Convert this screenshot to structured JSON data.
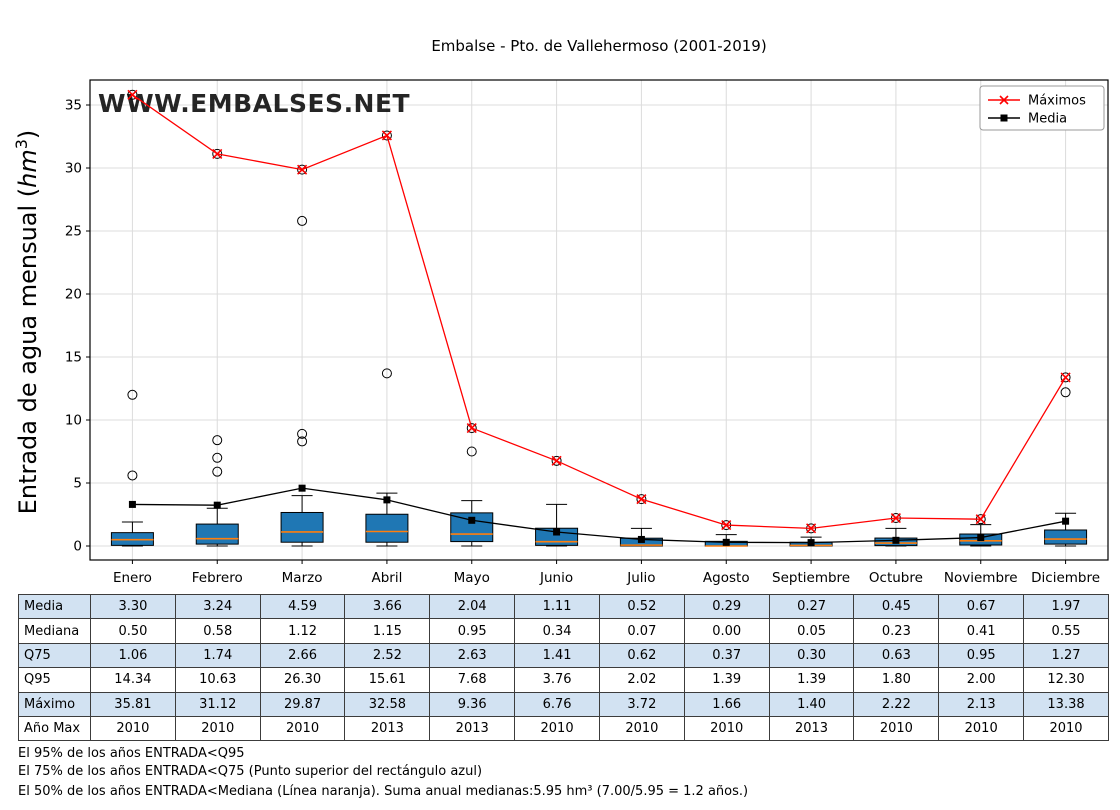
{
  "chart_data": {
    "type": "boxplot+line",
    "title": "Embalse - Pto. de Vallehermoso (2001-2019)",
    "watermark": "WWW.EMBALSES.NET",
    "ylabel": "Entrada de agua mensual (hm³)",
    "ylim": [
      -1.1,
      37.0
    ],
    "yticks": [
      0,
      5,
      10,
      15,
      20,
      25,
      30,
      35
    ],
    "grid": true,
    "legend_position": "upper right",
    "categories": [
      "Enero",
      "Febrero",
      "Marzo",
      "Abril",
      "Mayo",
      "Junio",
      "Julio",
      "Agosto",
      "Septiembre",
      "Octubre",
      "Noviembre",
      "Diciembre"
    ],
    "series": [
      {
        "name": "Máximos",
        "type": "line",
        "color": "#ff0000",
        "marker": "x",
        "values": [
          35.81,
          31.12,
          29.87,
          32.58,
          9.36,
          6.76,
          3.72,
          1.66,
          1.4,
          2.22,
          2.13,
          13.38
        ]
      },
      {
        "name": "Media",
        "type": "line",
        "color": "#000000",
        "marker": "square",
        "values": [
          3.3,
          3.24,
          4.59,
          3.66,
          2.04,
          1.11,
          0.52,
          0.29,
          0.27,
          0.45,
          0.67,
          1.97
        ]
      }
    ],
    "boxplot": {
      "box_fill": "#1f77b4",
      "median_color": "#ff7f0e",
      "median": [
        0.5,
        0.58,
        1.12,
        1.15,
        0.95,
        0.34,
        0.07,
        0.0,
        0.05,
        0.23,
        0.41,
        0.55
      ],
      "q75": [
        1.06,
        1.74,
        2.66,
        2.52,
        2.63,
        1.41,
        0.62,
        0.37,
        0.3,
        0.63,
        0.95,
        1.27
      ],
      "q25_est": [
        0.05,
        0.15,
        0.3,
        0.3,
        0.35,
        0.05,
        0.0,
        0.0,
        0.0,
        0.03,
        0.08,
        0.15
      ],
      "whisker_low_est": [
        0,
        0,
        0,
        0,
        0,
        0,
        0,
        0,
        0,
        0,
        0,
        0
      ],
      "whisker_high_est": [
        1.9,
        3.0,
        4.0,
        4.2,
        3.6,
        3.3,
        1.4,
        0.9,
        0.7,
        1.4,
        1.7,
        2.6
      ],
      "outliers": [
        [
          5.6,
          12.0
        ],
        [
          5.9,
          7.0,
          8.4
        ],
        [
          8.3,
          8.9,
          25.8
        ],
        [
          13.7
        ],
        [
          7.5
        ],
        [],
        [],
        [],
        [],
        [],
        [],
        [
          12.2
        ]
      ]
    }
  },
  "table": {
    "shade_color": "#d2e2f2",
    "rows": [
      {
        "label": "Media",
        "values": [
          "3.30",
          "3.24",
          "4.59",
          "3.66",
          "2.04",
          "1.11",
          "0.52",
          "0.29",
          "0.27",
          "0.45",
          "0.67",
          "1.97"
        ]
      },
      {
        "label": "Mediana",
        "values": [
          "0.50",
          "0.58",
          "1.12",
          "1.15",
          "0.95",
          "0.34",
          "0.07",
          "0.00",
          "0.05",
          "0.23",
          "0.41",
          "0.55"
        ]
      },
      {
        "label": "Q75",
        "values": [
          "1.06",
          "1.74",
          "2.66",
          "2.52",
          "2.63",
          "1.41",
          "0.62",
          "0.37",
          "0.30",
          "0.63",
          "0.95",
          "1.27"
        ]
      },
      {
        "label": "Q95",
        "values": [
          "14.34",
          "10.63",
          "26.30",
          "15.61",
          "7.68",
          "3.76",
          "2.02",
          "1.39",
          "1.39",
          "1.80",
          "2.00",
          "12.30"
        ]
      },
      {
        "label": "Máximo",
        "values": [
          "35.81",
          "31.12",
          "29.87",
          "32.58",
          "9.36",
          "6.76",
          "3.72",
          "1.66",
          "1.40",
          "2.22",
          "2.13",
          "13.38"
        ]
      },
      {
        "label": "Año Max",
        "values": [
          "2010",
          "2010",
          "2010",
          "2013",
          "2013",
          "2010",
          "2010",
          "2010",
          "2013",
          "2010",
          "2010",
          "2010"
        ]
      }
    ]
  },
  "footnotes": [
    "El 95% de los años ENTRADA<Q95",
    "El 75% de los años ENTRADA<Q75 (Punto superior del rectángulo azul)",
    "El 50% de los años ENTRADA<Mediana (Línea naranja). Suma anual medianas:5.95 hm³ (7.00/5.95 = 1.2 años.)"
  ]
}
